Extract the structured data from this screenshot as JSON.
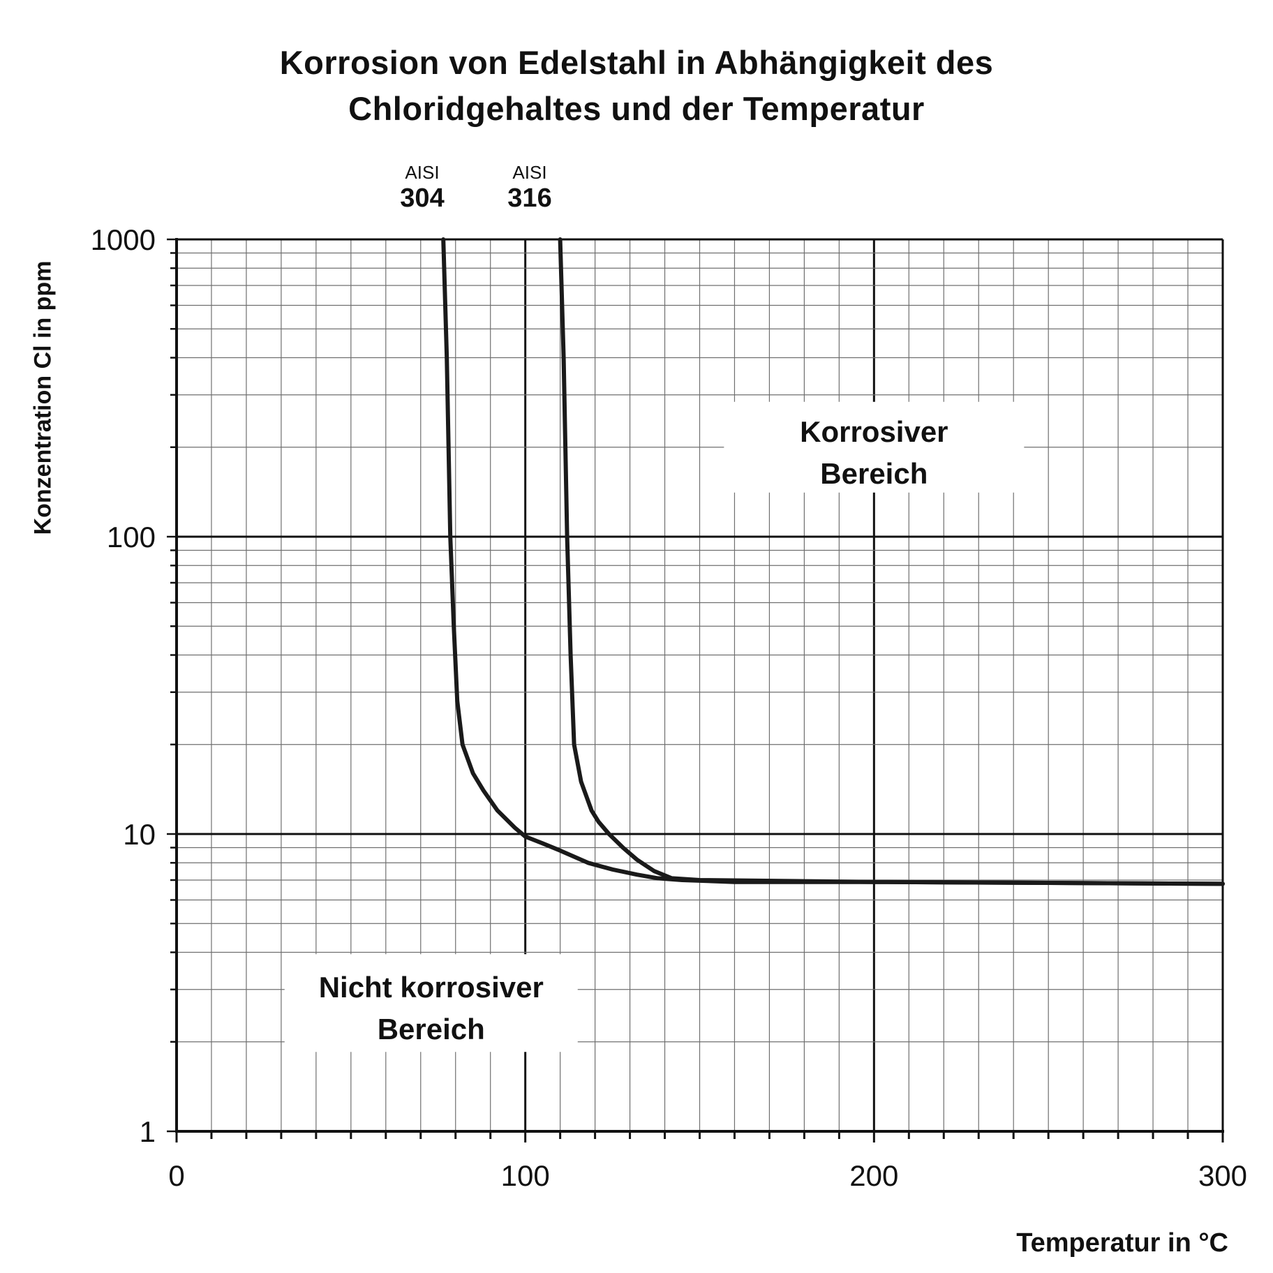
{
  "chart_data": {
    "type": "line",
    "title_line1": "Korrosion von Edelstahl in Abhängigkeit des",
    "title_line2": "Chloridgehaltes und der Temperatur",
    "xlabel": "Temperatur in °C",
    "ylabel": "Konzentration Cl in ppm",
    "xlim": [
      0,
      300
    ],
    "ylim": [
      1,
      1000
    ],
    "yscale": "log",
    "grid": true,
    "x_ticks": [
      "0",
      "100",
      "200",
      "300"
    ],
    "y_ticks": [
      "1",
      "10",
      "100",
      "1000"
    ],
    "series": [
      {
        "prefix": "AISI",
        "name": "304",
        "x": [
          76.5,
          77.5,
          78.5,
          79.5,
          80.5,
          82,
          85,
          88,
          92,
          97,
          100,
          105,
          110,
          118,
          125,
          132,
          138,
          145,
          160,
          200,
          250,
          300
        ],
        "y": [
          1000,
          400,
          100,
          50,
          28,
          20,
          16,
          14,
          12,
          10.5,
          9.8,
          9.3,
          8.8,
          8.0,
          7.6,
          7.3,
          7.1,
          7.0,
          6.9,
          6.9,
          6.85,
          6.8
        ]
      },
      {
        "prefix": "AISI",
        "name": "316",
        "x": [
          110,
          111,
          112,
          113,
          114,
          116,
          119,
          121,
          124,
          128,
          132,
          137,
          142,
          150,
          200,
          250,
          300
        ],
        "y": [
          1000,
          400,
          100,
          40,
          20,
          15,
          12,
          11,
          10,
          9,
          8.2,
          7.5,
          7.1,
          7.0,
          6.9,
          6.85,
          6.8
        ]
      }
    ],
    "annotations": [
      {
        "line1": "Korrosiver",
        "line2": "Bereich",
        "x": 200,
        "y": 200
      },
      {
        "line1": "Nicht korrosiver",
        "line2": "Bereich",
        "x": 73,
        "y": 2.7
      }
    ],
    "colors": {
      "line": "#1a1a1a",
      "grid": "#6f6f6f",
      "major_grid": "#111111"
    }
  }
}
